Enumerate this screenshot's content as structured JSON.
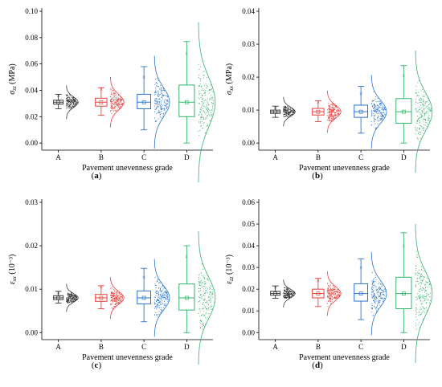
{
  "colors": {
    "A": "#3a3a3a",
    "B": "#e8413c",
    "C": "#2a74d0",
    "D": "#33b36b"
  },
  "chart_data": [
    {
      "panel": "a",
      "type": "box",
      "label": "(a)",
      "xlabel": "Pavement unevenness grade",
      "ylabel": "σzz (MPa)",
      "ylabel_main": "σ",
      "ylabel_sub": "zz",
      "ylabel_unit": " (MPa)",
      "ylim": [
        0,
        0.1
      ],
      "yticks": [
        "0.00",
        "0.02",
        "0.04",
        "0.06",
        "0.08",
        "0.10"
      ],
      "ytick_values": [
        0,
        0.02,
        0.04,
        0.06,
        0.08,
        0.1
      ],
      "categories": [
        "A",
        "B",
        "C",
        "D"
      ],
      "boxes": [
        {
          "min": 0.026,
          "q1": 0.0295,
          "median": 0.031,
          "q3": 0.0325,
          "max": 0.037,
          "mean": 0.031,
          "outlier": 0.036,
          "spread": 0.004
        },
        {
          "min": 0.021,
          "q1": 0.028,
          "median": 0.031,
          "q3": 0.034,
          "max": 0.042,
          "mean": 0.031,
          "outlier": 0.041,
          "spread": 0.006
        },
        {
          "min": 0.01,
          "q1": 0.026,
          "median": 0.031,
          "q3": 0.037,
          "max": 0.058,
          "mean": 0.031,
          "outlier": 0.05,
          "spread": 0.011
        },
        {
          "min": 0.0,
          "q1": 0.02,
          "median": 0.031,
          "q3": 0.044,
          "max": 0.077,
          "mean": 0.031,
          "outlier": 0.068,
          "spread": 0.019
        }
      ]
    },
    {
      "panel": "b",
      "type": "box",
      "label": "(b)",
      "xlabel": "Pavement unevenness grade",
      "ylabel": "σxx (MPa)",
      "ylabel_main": "σ",
      "ylabel_sub": "xx",
      "ylabel_unit": " (MPa)",
      "ylim": [
        0,
        0.04
      ],
      "yticks": [
        "0.00",
        "0.01",
        "0.02",
        "0.03",
        "0.04"
      ],
      "ytick_values": [
        0,
        0.01,
        0.02,
        0.03,
        0.04
      ],
      "categories": [
        "A",
        "B",
        "C",
        "D"
      ],
      "boxes": [
        {
          "min": 0.0078,
          "q1": 0.009,
          "median": 0.0095,
          "q3": 0.01,
          "max": 0.0112,
          "mean": 0.0095,
          "outlier": 0.0108,
          "spread": 0.0014
        },
        {
          "min": 0.0065,
          "q1": 0.0085,
          "median": 0.0095,
          "q3": 0.0105,
          "max": 0.0128,
          "mean": 0.0095,
          "outlier": 0.0125,
          "spread": 0.002
        },
        {
          "min": 0.003,
          "q1": 0.0078,
          "median": 0.0095,
          "q3": 0.0115,
          "max": 0.0172,
          "mean": 0.0095,
          "outlier": 0.015,
          "spread": 0.0035
        },
        {
          "min": 0.0,
          "q1": 0.006,
          "median": 0.0095,
          "q3": 0.0135,
          "max": 0.0235,
          "mean": 0.0095,
          "outlier": 0.0205,
          "spread": 0.0058
        }
      ]
    },
    {
      "panel": "c",
      "type": "box",
      "label": "(c)",
      "xlabel": "Pavement unevenness grade",
      "ylabel": "εxx (10⁻³)",
      "ylabel_main": "ε",
      "ylabel_sub": "xx",
      "ylabel_unit": " (10⁻³)",
      "ylim": [
        0,
        0.03
      ],
      "yticks": [
        "0.00",
        "0.01",
        "0.02",
        "0.03"
      ],
      "ytick_values": [
        0,
        0.01,
        0.02,
        0.03
      ],
      "categories": [
        "A",
        "B",
        "C",
        "D"
      ],
      "boxes": [
        {
          "min": 0.0068,
          "q1": 0.0076,
          "median": 0.008,
          "q3": 0.0085,
          "max": 0.0095,
          "mean": 0.008,
          "outlier": 0.0092,
          "spread": 0.001
        },
        {
          "min": 0.0055,
          "q1": 0.0072,
          "median": 0.008,
          "q3": 0.0088,
          "max": 0.0108,
          "mean": 0.008,
          "outlier": 0.0105,
          "spread": 0.0015
        },
        {
          "min": 0.0025,
          "q1": 0.0066,
          "median": 0.008,
          "q3": 0.0096,
          "max": 0.0148,
          "mean": 0.008,
          "outlier": 0.0128,
          "spread": 0.0028
        },
        {
          "min": 0.0,
          "q1": 0.0052,
          "median": 0.008,
          "q3": 0.0112,
          "max": 0.02,
          "mean": 0.008,
          "outlier": 0.0175,
          "spread": 0.0048
        }
      ]
    },
    {
      "panel": "d",
      "type": "box",
      "label": "(d)",
      "xlabel": "Pavement unevenness grade",
      "ylabel": "εzz (10⁻³)",
      "ylabel_main": "ε",
      "ylabel_sub": "zz",
      "ylabel_unit": " (10⁻³)",
      "ylim": [
        0,
        0.06
      ],
      "yticks": [
        "0.00",
        "0.01",
        "0.02",
        "0.03",
        "0.04",
        "0.05",
        "0.06"
      ],
      "ytick_values": [
        0,
        0.01,
        0.02,
        0.03,
        0.04,
        0.05,
        0.06
      ],
      "categories": [
        "A",
        "B",
        "C",
        "D"
      ],
      "boxes": [
        {
          "min": 0.0158,
          "q1": 0.0172,
          "median": 0.018,
          "q3": 0.019,
          "max": 0.0215,
          "mean": 0.018,
          "outlier": 0.021,
          "spread": 0.002
        },
        {
          "min": 0.012,
          "q1": 0.016,
          "median": 0.018,
          "q3": 0.02,
          "max": 0.025,
          "mean": 0.018,
          "outlier": 0.024,
          "spread": 0.0032
        },
        {
          "min": 0.006,
          "q1": 0.0145,
          "median": 0.018,
          "q3": 0.0225,
          "max": 0.034,
          "mean": 0.018,
          "outlier": 0.03,
          "spread": 0.006
        },
        {
          "min": 0.0,
          "q1": 0.011,
          "median": 0.018,
          "q3": 0.0255,
          "max": 0.046,
          "mean": 0.018,
          "outlier": 0.04,
          "spread": 0.01
        }
      ]
    }
  ]
}
